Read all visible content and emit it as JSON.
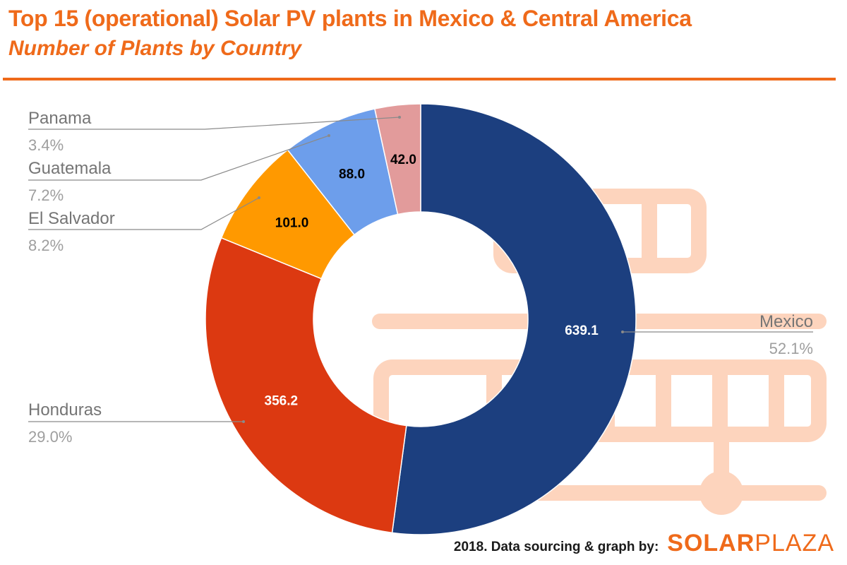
{
  "header": {
    "title": "Top 15 (operational) Solar PV plants in Mexico & Central America",
    "subtitle": "Number of Plants by Country"
  },
  "footer": {
    "credit": "2018. Data sourcing & graph by:",
    "brand_strong": "SOLAR",
    "brand_light": "PLAZA"
  },
  "colors": {
    "accent": "#ef6a1a",
    "watermark": "#fdd4bd",
    "label_gray": "#9e9e9e",
    "name_gray": "#757575"
  },
  "chart_data": {
    "type": "pie",
    "donut": true,
    "title": "Number of Plants by Country",
    "slices": [
      {
        "label": "Mexico",
        "value": 639.1,
        "value_label": "639.1",
        "percent": "52.1%",
        "color": "#1c3f7f",
        "text_color": "#ffffff"
      },
      {
        "label": "Honduras",
        "value": 356.2,
        "value_label": "356.2",
        "percent": "29.0%",
        "color": "#dc3911",
        "text_color": "#ffffff"
      },
      {
        "label": "El Salvador",
        "value": 101.0,
        "value_label": "101.0",
        "percent": "8.2%",
        "color": "#ff9900",
        "text_color": "#000000"
      },
      {
        "label": "Guatemala",
        "value": 88.0,
        "value_label": "88.0",
        "percent": "7.2%",
        "color": "#6d9eeb",
        "text_color": "#000000"
      },
      {
        "label": "Panama",
        "value": 42.0,
        "value_label": "42.0",
        "percent": "3.4%",
        "color": "#e29b9b",
        "text_color": "#000000"
      }
    ],
    "start": "12 o'clock",
    "direction": "clockwise",
    "legend": "side callouts with leader lines"
  }
}
